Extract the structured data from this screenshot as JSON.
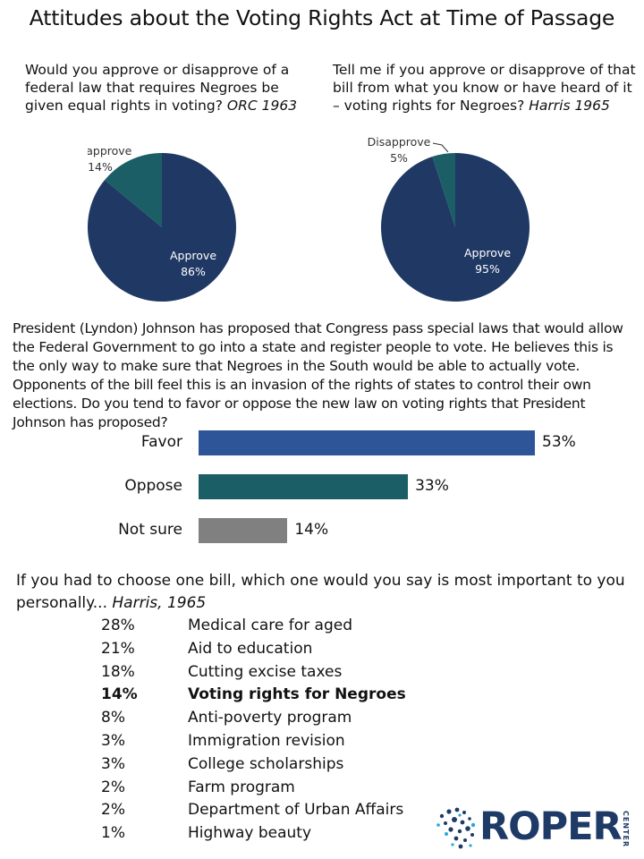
{
  "title": "Attitudes about the Voting Rights Act at Time of Passage",
  "q1": {
    "text": "Would you approve or disapprove of a federal law that requires Negroes be given equal rights in voting?",
    "source": "ORC 1963"
  },
  "q2": {
    "text": "Tell me if you approve or disapprove of that bill from what you know or have heard of it – voting rights for Negroes?",
    "source": "Harris 1965"
  },
  "q3": {
    "text": "President (Lyndon) Johnson has proposed that Congress pass special laws that would allow the Federal Government to go into a state and register people to vote. He believes this is the only way to make sure that Negroes in the South would be able to actually vote. Opponents of the bill feel this is an invasion of the rights of states to control their own elections. Do you tend to favor or oppose the new law on voting rights that President Johnson has proposed?"
  },
  "q4": {
    "text": "If you had to choose one bill, which one would you say is most important to you personally...",
    "source": "Harris, 1965"
  },
  "colors": {
    "approve": "#1f3864",
    "disapprove": "#1b5e66",
    "favor": "#2e5597",
    "oppose": "#1b5e66",
    "not_sure": "#808080"
  },
  "chart_data": [
    {
      "type": "pie",
      "slices": [
        {
          "label": "Approve",
          "value": 86,
          "value_label": "86%"
        },
        {
          "label": "Disapprove",
          "value": 14,
          "value_label": "14%"
        }
      ]
    },
    {
      "type": "pie",
      "slices": [
        {
          "label": "Approve",
          "value": 95,
          "value_label": "95%"
        },
        {
          "label": "Disapprove",
          "value": 5,
          "value_label": "5%"
        }
      ]
    },
    {
      "type": "bar",
      "orientation": "horizontal",
      "categories": [
        "Favor",
        "Oppose",
        "Not sure"
      ],
      "values": [
        53,
        33,
        14
      ],
      "value_labels": [
        "53%",
        "33%",
        "14%"
      ]
    },
    {
      "type": "table",
      "rows": [
        {
          "pct": "28%",
          "item": "Medical care for aged",
          "bold": false
        },
        {
          "pct": "21%",
          "item": "Aid to education",
          "bold": false
        },
        {
          "pct": "18%",
          "item": "Cutting excise taxes",
          "bold": false
        },
        {
          "pct": "14%",
          "item": "Voting rights for Negroes",
          "bold": true
        },
        {
          "pct": "8%",
          "item": "Anti-poverty program",
          "bold": false
        },
        {
          "pct": "3%",
          "item": "Immigration revision",
          "bold": false
        },
        {
          "pct": "3%",
          "item": "College scholarships",
          "bold": false
        },
        {
          "pct": "2%",
          "item": "Farm program",
          "bold": false
        },
        {
          "pct": "2%",
          "item": "Department of Urban Affairs",
          "bold": false
        },
        {
          "pct": "1%",
          "item": "Highway beauty",
          "bold": false
        }
      ]
    }
  ],
  "logo": {
    "name": "ROPER",
    "sub": "CENTER",
    "icon": "roper-dots-icon"
  }
}
